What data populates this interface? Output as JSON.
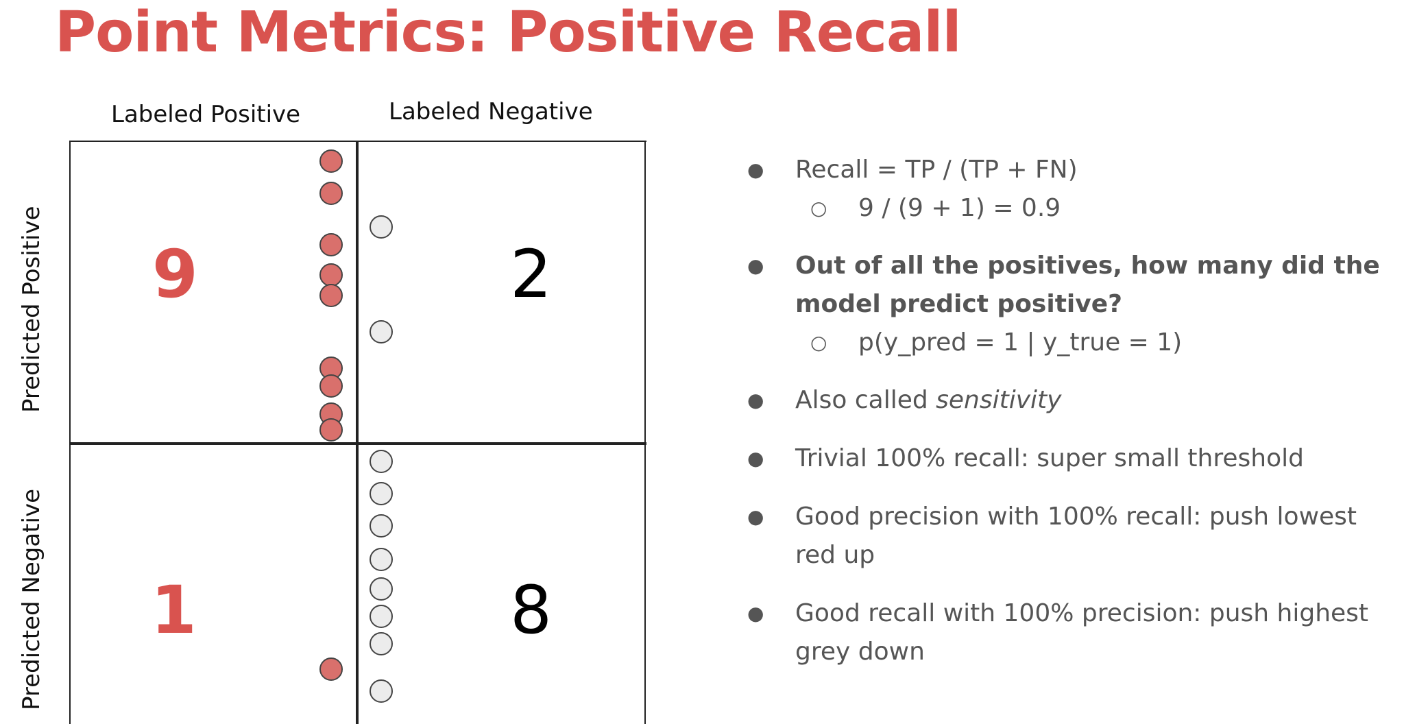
{
  "title": "Point Metrics: Positive Recall",
  "matrix": {
    "col_labels": [
      "Labeled Positive",
      "Labeled Negative"
    ],
    "row_labels": [
      "Predicted Positive",
      "Predicted Negative"
    ],
    "cells": {
      "tp": "9",
      "fp": "2",
      "fn": "1",
      "tn": "8"
    },
    "colors": {
      "positive": "#d9706c",
      "negative": "#ececec",
      "accent": "#d9534f"
    }
  },
  "bullets": [
    {
      "text": "Recall = TP / (TP + FN)",
      "sub": "9 / (9 + 1) = 0.9"
    },
    {
      "text": "Out of all the positives, how many did the model predict positive?",
      "sub": "p(y_pred = 1 | y_true = 1)"
    },
    {
      "text_prefix": "Also called ",
      "text_em": "sensitivity"
    },
    {
      "text": "Trivial 100% recall: super small threshold"
    },
    {
      "text": "Good precision with 100% recall: push lowest red up"
    },
    {
      "text": "Good recall with 100% precision: push highest grey down"
    }
  ],
  "bullet_marker": "●",
  "sub_marker": "○"
}
